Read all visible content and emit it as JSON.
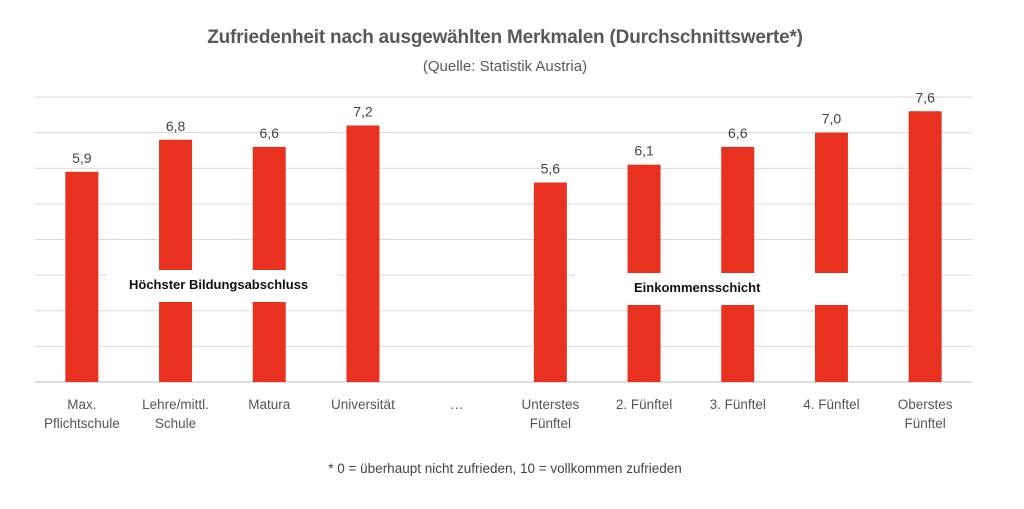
{
  "chart_data": {
    "type": "bar",
    "title": "Zufriedenheit nach ausgewählten Merkmalen (Durchschnittswerte*)",
    "subtitle": "(Quelle: Statistik Austria)",
    "footnote": "* 0 = überhaupt nicht zufrieden, 10 = vollkommen zufrieden",
    "categories": [
      [
        "Max.",
        "Pflichtschule"
      ],
      [
        "Lehre/mittl.",
        "Schule"
      ],
      [
        "Matura"
      ],
      [
        "Universität"
      ],
      [
        "…"
      ],
      [
        "Unterstes",
        "Fünftel"
      ],
      [
        "2. Fünftel"
      ],
      [
        "3. Fünftel"
      ],
      [
        "4. Fünftel"
      ],
      [
        "Oberstes",
        "Fünftel"
      ]
    ],
    "values": [
      5.9,
      6.8,
      6.6,
      7.2,
      null,
      5.6,
      6.1,
      6.6,
      7.0,
      7.6
    ],
    "labels": [
      "5,9",
      "6,8",
      "6,6",
      "7,2",
      "",
      "5,6",
      "6,1",
      "6,6",
      "7,0",
      "7,6"
    ],
    "ylim": [
      0,
      8
    ],
    "grid": true,
    "bar_color": "#e8321f",
    "group_labels": [
      "Höchster Bildungsabschluss",
      "Einkommensschicht"
    ]
  }
}
